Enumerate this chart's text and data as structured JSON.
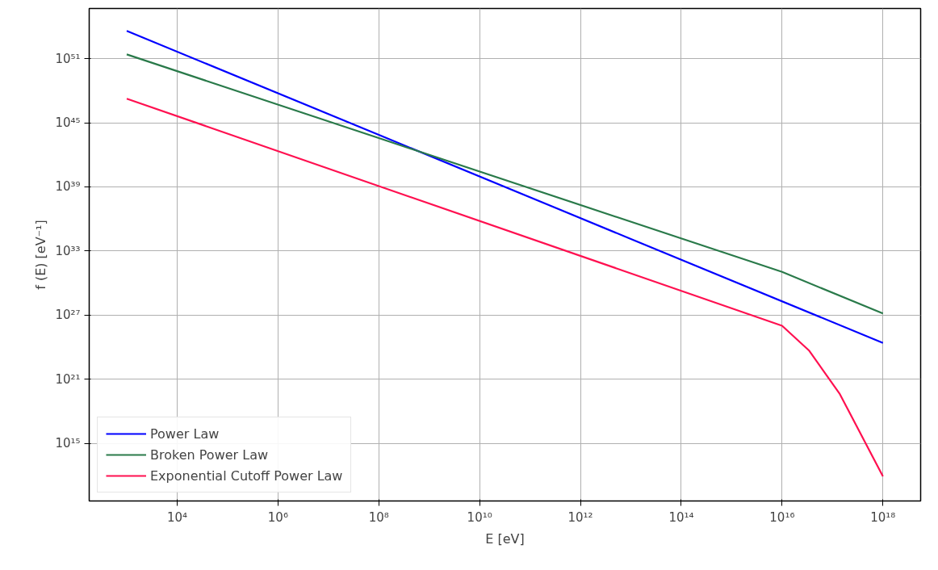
{
  "chart_data": {
    "type": "line",
    "xlabel": "E [eV]",
    "ylabel": "f (E) [eV⁻¹]",
    "log": "xy",
    "grid": true,
    "legend": "bottom left",
    "line_style": "solid",
    "marker": "none",
    "xlim": [
      180.0,
      5.6e+18
    ],
    "ylim": [
      4000000000.0,
      5e+55
    ],
    "xticks": [
      {
        "value": 10000.0,
        "label": "10⁴"
      },
      {
        "value": 1000000.0,
        "label": "10⁶"
      },
      {
        "value": 100000000.0,
        "label": "10⁸"
      },
      {
        "value": 10000000000.0,
        "label": "10¹⁰"
      },
      {
        "value": 1000000000000.0,
        "label": "10¹²"
      },
      {
        "value": 100000000000000.0,
        "label": "10¹⁴"
      },
      {
        "value": 1e+16,
        "label": "10¹⁶"
      },
      {
        "value": 1e+18,
        "label": "10¹⁸"
      }
    ],
    "yticks": [
      {
        "value": 1000000000000000.0,
        "label": "10¹⁵"
      },
      {
        "value": 1e+21,
        "label": "10²¹"
      },
      {
        "value": 1e+27,
        "label": "10²⁷"
      },
      {
        "value": 1e+33,
        "label": "10³³"
      },
      {
        "value": 1e+39,
        "label": "10³⁹"
      },
      {
        "value": 1e+45,
        "label": "10⁴⁵"
      },
      {
        "value": 1e+51,
        "label": "10⁵¹"
      }
    ],
    "series": [
      {
        "name": "Power Law",
        "color": "#0000ff",
        "x": [
          1000.0,
          100000000.0,
          10000000000000.0,
          1e+18
        ],
        "values": [
          4e+53,
          7.4e+43,
          1.35e+34,
          2.5e+24
        ]
      },
      {
        "name": "Broken Power Law",
        "color": "#2a7a4a",
        "x": [
          1000.0,
          100000000.0,
          1e+16,
          1e+18
        ],
        "values": [
          2.5e+51,
          3.7e+43,
          1.1e+31,
          1.4e+27
        ]
      },
      {
        "name": "Exponential Cutoff Power Law",
        "color": "#ff1050",
        "x": [
          1000.0,
          100000000.0,
          1e+16,
          3.4e+16,
          1.4e+17,
          1e+18
        ],
        "values": [
          1.8e+47,
          1.2e+39,
          1e+26,
          5e+23,
          4e+19,
          800000000000.0
        ]
      }
    ]
  }
}
